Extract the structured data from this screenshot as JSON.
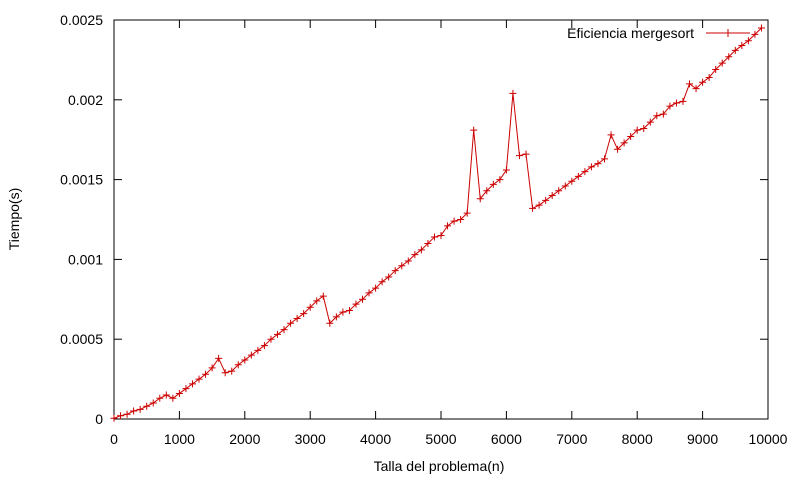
{
  "chart_data": {
    "type": "line",
    "title": "",
    "xlabel": "Talla del problema(n)",
    "ylabel": "Tiempo(s)",
    "xlim": [
      0,
      10000
    ],
    "ylim": [
      0,
      0.0025
    ],
    "x_ticks": [
      0,
      1000,
      2000,
      3000,
      4000,
      5000,
      6000,
      7000,
      8000,
      9000,
      10000
    ],
    "x_tick_labels": [
      "0",
      "1000",
      "2000",
      "3000",
      "4000",
      "5000",
      "6000",
      "7000",
      "8000",
      "9000",
      "10000"
    ],
    "y_ticks": [
      0,
      0.0005,
      0.001,
      0.0015,
      0.002,
      0.0025
    ],
    "y_tick_labels": [
      "0",
      "0.0005",
      "0.001",
      "0.0015",
      "0.002",
      "0.0025"
    ],
    "grid": false,
    "legend_position": "top-right",
    "series": [
      {
        "name": "Eficiencia mergesort",
        "color": "#cc0000",
        "marker": "plus",
        "x": [
          0,
          100,
          200,
          300,
          400,
          500,
          600,
          700,
          800,
          900,
          1000,
          1100,
          1200,
          1300,
          1400,
          1500,
          1600,
          1700,
          1800,
          1900,
          2000,
          2100,
          2200,
          2300,
          2400,
          2500,
          2600,
          2700,
          2800,
          2900,
          3000,
          3100,
          3200,
          3300,
          3400,
          3500,
          3600,
          3700,
          3800,
          3900,
          4000,
          4100,
          4200,
          4300,
          4400,
          4500,
          4600,
          4700,
          4800,
          4900,
          5000,
          5100,
          5200,
          5300,
          5400,
          5500,
          5600,
          5700,
          5800,
          5900,
          6000,
          6100,
          6200,
          6300,
          6400,
          6500,
          6600,
          6700,
          6800,
          6900,
          7000,
          7100,
          7200,
          7300,
          7400,
          7500,
          7600,
          7700,
          7800,
          7900,
          8000,
          8100,
          8200,
          8300,
          8400,
          8500,
          8600,
          8700,
          8800,
          8900,
          9000,
          9100,
          9200,
          9300,
          9400,
          9500,
          9600,
          9700,
          9800,
          9900
        ],
        "values": [
          5e-06,
          2e-05,
          3e-05,
          5e-05,
          6e-05,
          8e-05,
          0.0001,
          0.00013,
          0.00015,
          0.00013,
          0.00016,
          0.00019,
          0.00022,
          0.00025,
          0.00028,
          0.00032,
          0.00038,
          0.00029,
          0.0003,
          0.00034,
          0.00037,
          0.0004,
          0.00043,
          0.00046,
          0.0005,
          0.00053,
          0.00056,
          0.0006,
          0.00063,
          0.00066,
          0.0007,
          0.00074,
          0.00077,
          0.0006,
          0.00064,
          0.00067,
          0.00068,
          0.00072,
          0.00075,
          0.00079,
          0.00082,
          0.00086,
          0.00089,
          0.00093,
          0.00096,
          0.00099,
          0.00103,
          0.00106,
          0.0011,
          0.00114,
          0.00115,
          0.00121,
          0.00124,
          0.00125,
          0.00129,
          0.00181,
          0.00138,
          0.00143,
          0.00147,
          0.0015,
          0.00156,
          0.00204,
          0.00165,
          0.00166,
          0.00132,
          0.00134,
          0.00137,
          0.0014,
          0.00143,
          0.00146,
          0.00149,
          0.00152,
          0.00155,
          0.00158,
          0.0016,
          0.00163,
          0.00178,
          0.00169,
          0.00173,
          0.00177,
          0.00181,
          0.00182,
          0.00186,
          0.0019,
          0.00191,
          0.00196,
          0.00198,
          0.00199,
          0.0021,
          0.00207,
          0.00211,
          0.00214,
          0.00219,
          0.00223,
          0.00227,
          0.00231,
          0.00234,
          0.00237,
          0.00241,
          0.00245
        ]
      }
    ]
  }
}
